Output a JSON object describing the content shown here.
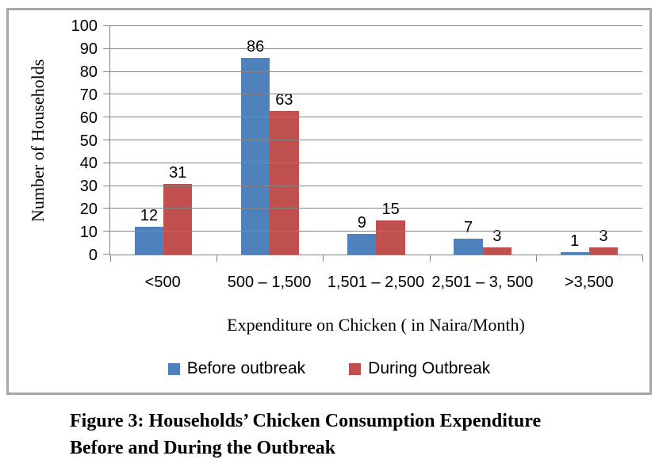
{
  "figure": {
    "caption_line1": "Figure 3: Households’ Chicken Consumption Expenditure",
    "caption_line2": "Before and During the Outbreak"
  },
  "chart_data": {
    "type": "bar",
    "title": "",
    "categories": [
      "<500",
      "500 – 1,500",
      "1,501 – 2,500",
      "2,501 – 3, 500",
      ">3,500"
    ],
    "series": [
      {
        "name": "Before outbreak",
        "color": "#4F81BD",
        "values": [
          12,
          86,
          9,
          7,
          1
        ]
      },
      {
        "name": "During Outbreak",
        "color": "#C0504D",
        "values": [
          31,
          63,
          15,
          3,
          3
        ]
      }
    ],
    "xlabel": "Expenditure on Chicken ( in Naira/Month)",
    "ylabel": "Number of Households",
    "ylim": [
      0,
      100
    ],
    "ytick_step": 10,
    "grid": true,
    "data_labels": true,
    "legend_position": "bottom",
    "colors": {
      "gridline": "#848484",
      "axis": "#848484",
      "frame_border": "#a6a6a6",
      "text": "#000000"
    }
  }
}
